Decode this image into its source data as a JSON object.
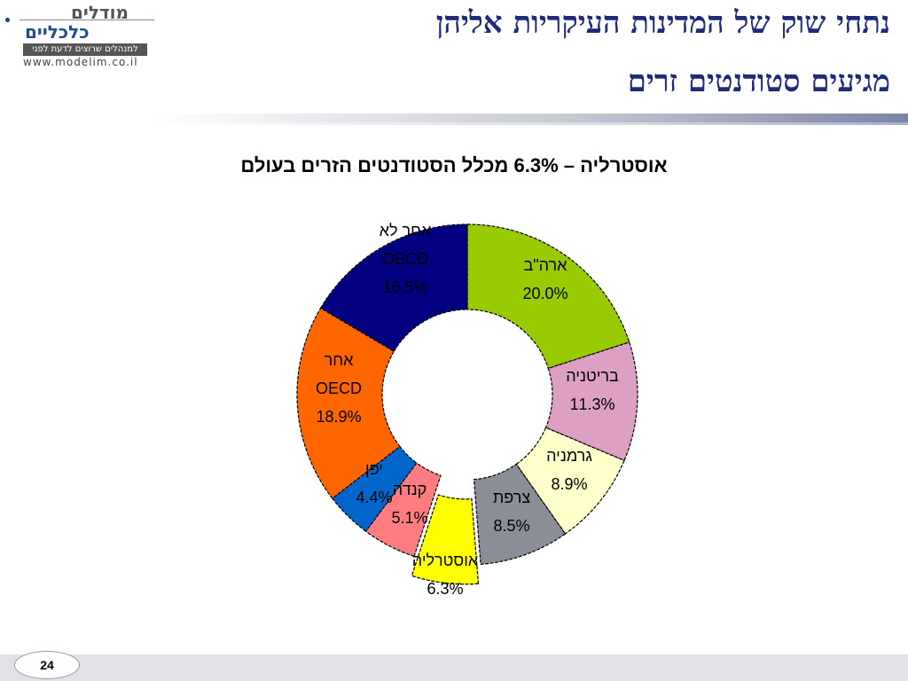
{
  "logo": {
    "top": "מודלים",
    "main": "כלכליים",
    "tagline": "למנהלים שרוצים לדעת לפני",
    "url": "www.modelim.co.il"
  },
  "slide": {
    "title_line1": "נתחי שוק של המדינות העיקריות אליהן",
    "title_line2": "מגיעים סטודנטים זרים",
    "page_number": "24"
  },
  "colors": {
    "title": "#1f2a7a",
    "slices": [
      "#99cc00",
      "#dd9fc4",
      "#ffffcc",
      "#8a8e96",
      "#ffff00",
      "#ff7c80",
      "#0066cc",
      "#ff6600",
      "#000080"
    ]
  },
  "chart_data": {
    "type": "pie",
    "style": "donut",
    "title": "אוסטרליה – 6.3% מכלל הסטודנטים הזרים בעולם",
    "exploded": "אוסטרליה",
    "slices": [
      {
        "label": "ארה\"ב",
        "value": 20.0,
        "value_label": "20.0%",
        "color": "#99cc00"
      },
      {
        "label": "בריטניה",
        "value": 11.3,
        "value_label": "11.3%",
        "color": "#dd9fc4"
      },
      {
        "label": "גרמניה",
        "value": 8.9,
        "value_label": "8.9%",
        "color": "#ffffcc"
      },
      {
        "label": "צרפת",
        "value": 8.5,
        "value_label": "8.5%",
        "color": "#8a8e96"
      },
      {
        "label": "אוסטרליה",
        "value": 6.3,
        "value_label": "6.3%",
        "color": "#ffff00"
      },
      {
        "label": "קנדה",
        "value": 5.1,
        "value_label": "5.1%",
        "color": "#ff7c80"
      },
      {
        "label": "יפן",
        "value": 4.4,
        "value_label": "4.4%",
        "color": "#0066cc"
      },
      {
        "label": "אחר OECD",
        "value": 18.9,
        "value_label": "18.9%",
        "color": "#ff6600"
      },
      {
        "label": "אחר לא OECD",
        "value": 16.5,
        "value_label": "16.5%",
        "color": "#000080"
      }
    ]
  }
}
